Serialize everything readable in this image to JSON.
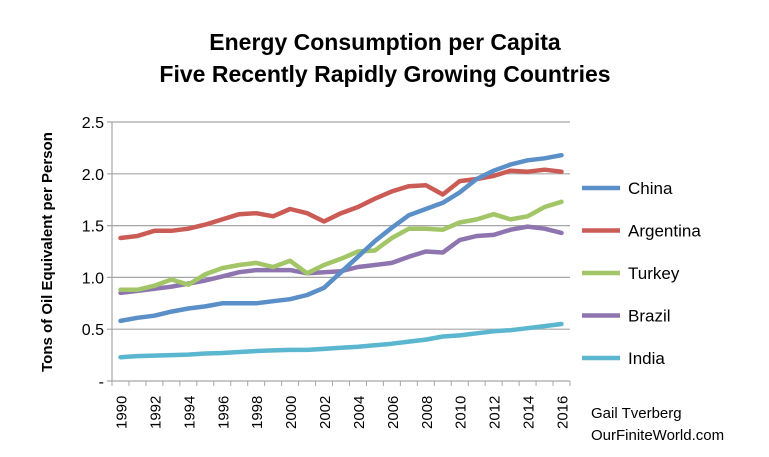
{
  "chart_data": {
    "type": "line",
    "title": [
      "Energy Consumption per Capita",
      "Five Recently Rapidly Growing Countries"
    ],
    "xlabel": "",
    "ylabel": "Tons of Oil Equivalent per Person",
    "ylim": [
      0,
      2.5
    ],
    "yticks": [
      "-",
      "0.5",
      "1.0",
      "1.5",
      "2.0",
      "2.5"
    ],
    "x": [
      1990,
      1991,
      1992,
      1993,
      1994,
      1995,
      1996,
      1997,
      1998,
      1999,
      2000,
      2001,
      2002,
      2003,
      2004,
      2005,
      2006,
      2007,
      2008,
      2009,
      2010,
      2011,
      2012,
      2013,
      2014,
      2015,
      2016
    ],
    "xticks": [
      "1990",
      "1992",
      "1994",
      "1996",
      "1998",
      "2000",
      "2002",
      "2004",
      "2006",
      "2008",
      "2010",
      "2012",
      "2014",
      "2016"
    ],
    "grid": true,
    "legend": "right",
    "series": [
      {
        "name": "China",
        "color": "#5B8FC8",
        "values": [
          0.58,
          0.61,
          0.63,
          0.67,
          0.7,
          0.72,
          0.75,
          0.75,
          0.75,
          0.77,
          0.79,
          0.83,
          0.9,
          1.05,
          1.2,
          1.35,
          1.48,
          1.6,
          1.66,
          1.72,
          1.82,
          1.95,
          2.03,
          2.09,
          2.13,
          2.15,
          2.18
        ]
      },
      {
        "name": "Argentina",
        "color": "#CB5B55",
        "values": [
          1.38,
          1.4,
          1.45,
          1.45,
          1.47,
          1.51,
          1.56,
          1.61,
          1.62,
          1.59,
          1.66,
          1.62,
          1.54,
          1.62,
          1.68,
          1.76,
          1.83,
          1.88,
          1.89,
          1.8,
          1.93,
          1.95,
          1.98,
          2.03,
          2.02,
          2.04,
          2.02
        ]
      },
      {
        "name": "Turkey",
        "color": "#A2C667",
        "values": [
          0.88,
          0.88,
          0.92,
          0.98,
          0.93,
          1.03,
          1.09,
          1.12,
          1.14,
          1.1,
          1.16,
          1.04,
          1.12,
          1.18,
          1.25,
          1.26,
          1.38,
          1.47,
          1.47,
          1.46,
          1.53,
          1.56,
          1.61,
          1.56,
          1.59,
          1.68,
          1.73
        ]
      },
      {
        "name": "Brazil",
        "color": "#8E75B0",
        "values": [
          0.85,
          0.87,
          0.89,
          0.91,
          0.94,
          0.97,
          1.01,
          1.05,
          1.07,
          1.07,
          1.07,
          1.04,
          1.05,
          1.06,
          1.1,
          1.12,
          1.14,
          1.2,
          1.25,
          1.24,
          1.36,
          1.4,
          1.41,
          1.46,
          1.49,
          1.47,
          1.43
        ]
      },
      {
        "name": "India",
        "color": "#5BB6CF",
        "values": [
          0.23,
          0.24,
          0.245,
          0.25,
          0.255,
          0.265,
          0.27,
          0.28,
          0.29,
          0.295,
          0.3,
          0.3,
          0.31,
          0.32,
          0.33,
          0.345,
          0.36,
          0.38,
          0.4,
          0.43,
          0.44,
          0.46,
          0.48,
          0.49,
          0.51,
          0.53,
          0.55
        ]
      }
    ]
  },
  "credit": {
    "line1": "Gail Tverberg",
    "line2": "OurFiniteWorld.com"
  }
}
